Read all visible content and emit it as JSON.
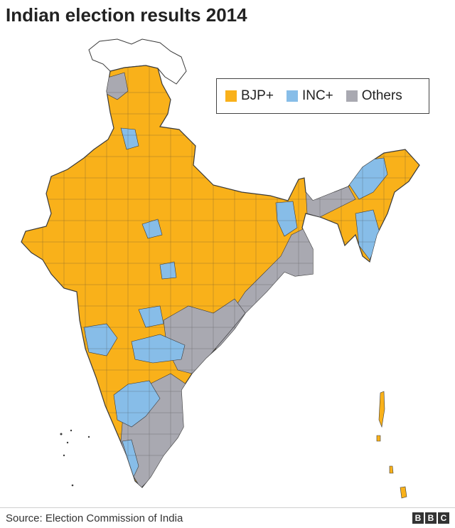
{
  "title": "Indian election results 2014",
  "legend": [
    {
      "label": "BJP+",
      "color": "#f9b11a"
    },
    {
      "label": "INC+",
      "color": "#87bde8"
    },
    {
      "label": "Others",
      "color": "#a9a9b1"
    }
  ],
  "colors": {
    "bjp": "#f9b11a",
    "inc": "#87bde8",
    "others": "#a9a9b1",
    "border": "#3a3a3a",
    "unclaimed": "#ffffff"
  },
  "source": "Source: Election Commission of India",
  "brand": {
    "letters": [
      "B",
      "B",
      "C"
    ]
  }
}
